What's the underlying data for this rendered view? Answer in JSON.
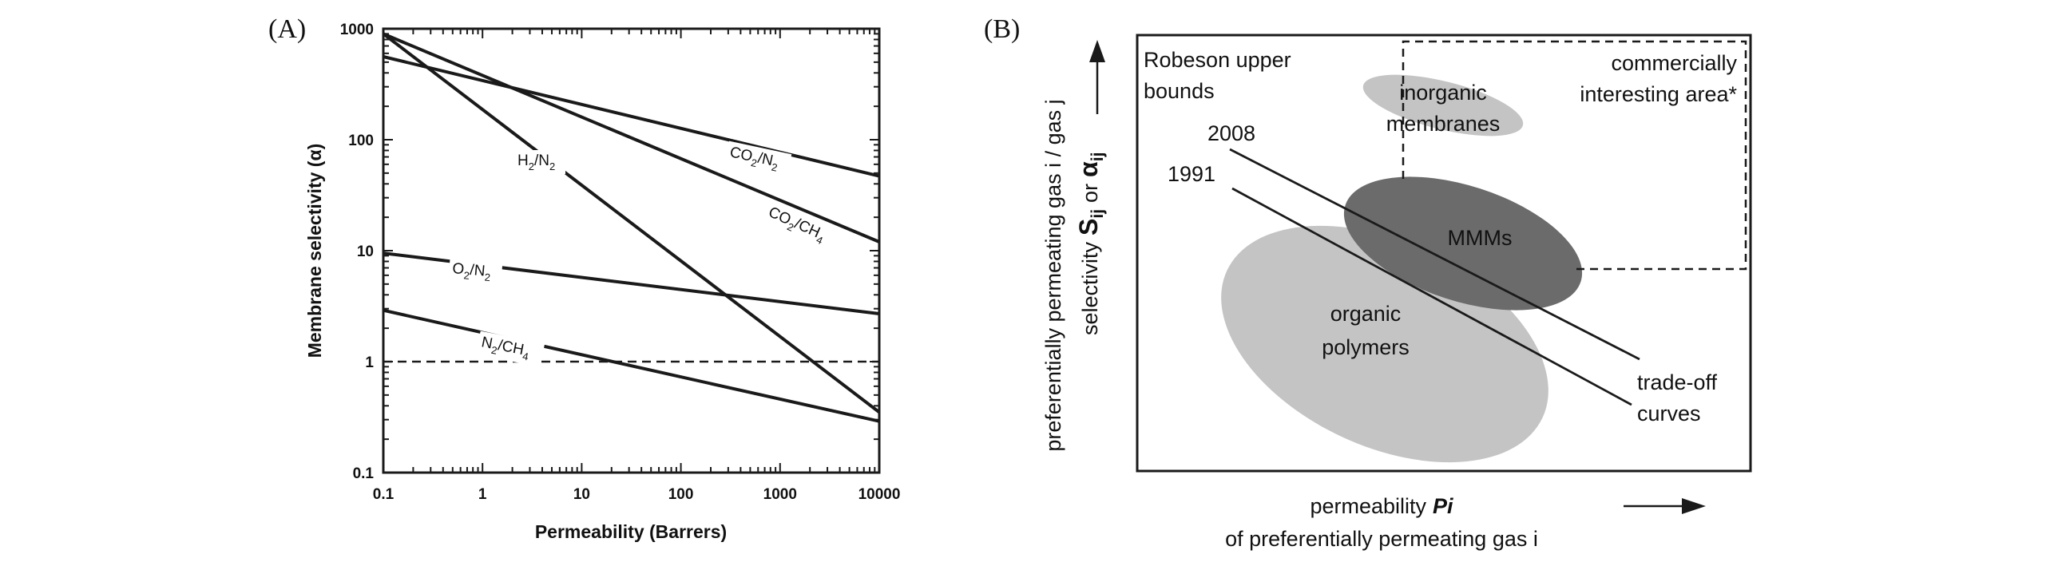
{
  "chart_data": [
    {
      "panel_label": "(A)",
      "type": "line",
      "xscale": "log",
      "yscale": "log",
      "xlabel": "Permeability (Barrers)",
      "ylabel": "Membrane selectivity (α)",
      "xlim": [
        0.1,
        10000
      ],
      "ylim": [
        0.1,
        1000
      ],
      "xticks": [
        "0.1",
        "1",
        "10",
        "100",
        "1000",
        "10000"
      ],
      "yticks": [
        "0.1",
        "1",
        "10",
        "100",
        "1000"
      ],
      "grid": false,
      "reference_line": {
        "y": 1,
        "style": "dashed"
      },
      "series": [
        {
          "name": "CO2/N2",
          "label_main": "CO",
          "label_sub1": "2",
          "label_mid": "/N",
          "label_sub2": "2",
          "x": [
            0.1,
            10000
          ],
          "y": [
            560,
            47
          ]
        },
        {
          "name": "CO2/CH4",
          "label_main": "CO",
          "label_sub1": "2",
          "label_mid": "/CH",
          "label_sub2": "4",
          "x": [
            0.1,
            10000
          ],
          "y": [
            900,
            12
          ]
        },
        {
          "name": "H2/N2",
          "label_main": "H",
          "label_sub1": "2",
          "label_mid": "/N",
          "label_sub2": "2",
          "x": [
            0.1,
            10000
          ],
          "y": [
            900,
            0.35
          ]
        },
        {
          "name": "O2/N2",
          "label_main": "O",
          "label_sub1": "2",
          "label_mid": "/N",
          "label_sub2": "2",
          "x": [
            0.1,
            10000
          ],
          "y": [
            9.5,
            2.7
          ]
        },
        {
          "name": "N2/CH4",
          "label_main": "N",
          "label_sub1": "2",
          "label_mid": "/CH",
          "label_sub2": "4",
          "x": [
            0.1,
            10000
          ],
          "y": [
            2.9,
            0.29
          ]
        }
      ]
    },
    {
      "panel_label": "(B)",
      "type": "diagram",
      "xlabel_line1": "permeability",
      "xlabel_symbol": "Pi",
      "xlabel_line2": "of preferentially permeating gas i",
      "ylabel_line1": "preferentially permeating gas i / gas j",
      "ylabel_line2_prefix": "selectivity",
      "ylabel_S": "S",
      "ylabel_S_sub": "ij",
      "ylabel_or": "or",
      "ylabel_alpha": "α",
      "ylabel_alpha_sub": "ij",
      "regions": [
        {
          "name": "inorganic membranes",
          "line1": "inorganic",
          "line2": "membranes",
          "color": "#c4c4c4"
        },
        {
          "name": "MMMs",
          "line1": "MMMs",
          "color": "#6b6b6b"
        },
        {
          "name": "organic polymers",
          "line1": "organic",
          "line2": "polymers",
          "color": "#c4c4c4"
        }
      ],
      "upper_bounds_label_line1": "Robeson upper",
      "upper_bounds_label_line2": "bounds",
      "bounds": [
        "2008",
        "1991"
      ],
      "tradeoff_label_line1": "trade-off",
      "tradeoff_label_line2": "curves",
      "commercial_label_line1": "commercially",
      "commercial_label_line2": "interesting area*"
    }
  ],
  "colors": {
    "line": "#1a1a1a",
    "light_region": "#c4c4c4",
    "dark_region": "#6b6b6b"
  }
}
